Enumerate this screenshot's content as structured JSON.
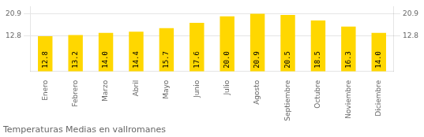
{
  "chart_data": {
    "type": "bar",
    "title": "Temperaturas Medias en vallromanes",
    "categories": [
      "Enero",
      "Febrero",
      "Marzo",
      "Abril",
      "Mayo",
      "Junio",
      "Julio",
      "Agosto",
      "Septiembre",
      "Octubre",
      "Noviembre",
      "Diciembre"
    ],
    "values": [
      12.8,
      13.2,
      14.0,
      14.4,
      15.7,
      17.6,
      20.0,
      20.9,
      20.5,
      18.5,
      16.3,
      14.0
    ],
    "value_labels": [
      "12.8",
      "13.2",
      "14.0",
      "14.4",
      "15.7",
      "17.6",
      "20.0",
      "20.9",
      "20.5",
      "18.5",
      "16.3",
      "14.0"
    ],
    "color": "#FFD700",
    "ylim": [
      0,
      23.5
    ],
    "yticks": [
      12.8,
      20.9
    ],
    "y2lim": [
      0,
      23.5
    ],
    "y2ticks": [
      12.8,
      20.9
    ],
    "grid": true,
    "data_labels": true
  }
}
